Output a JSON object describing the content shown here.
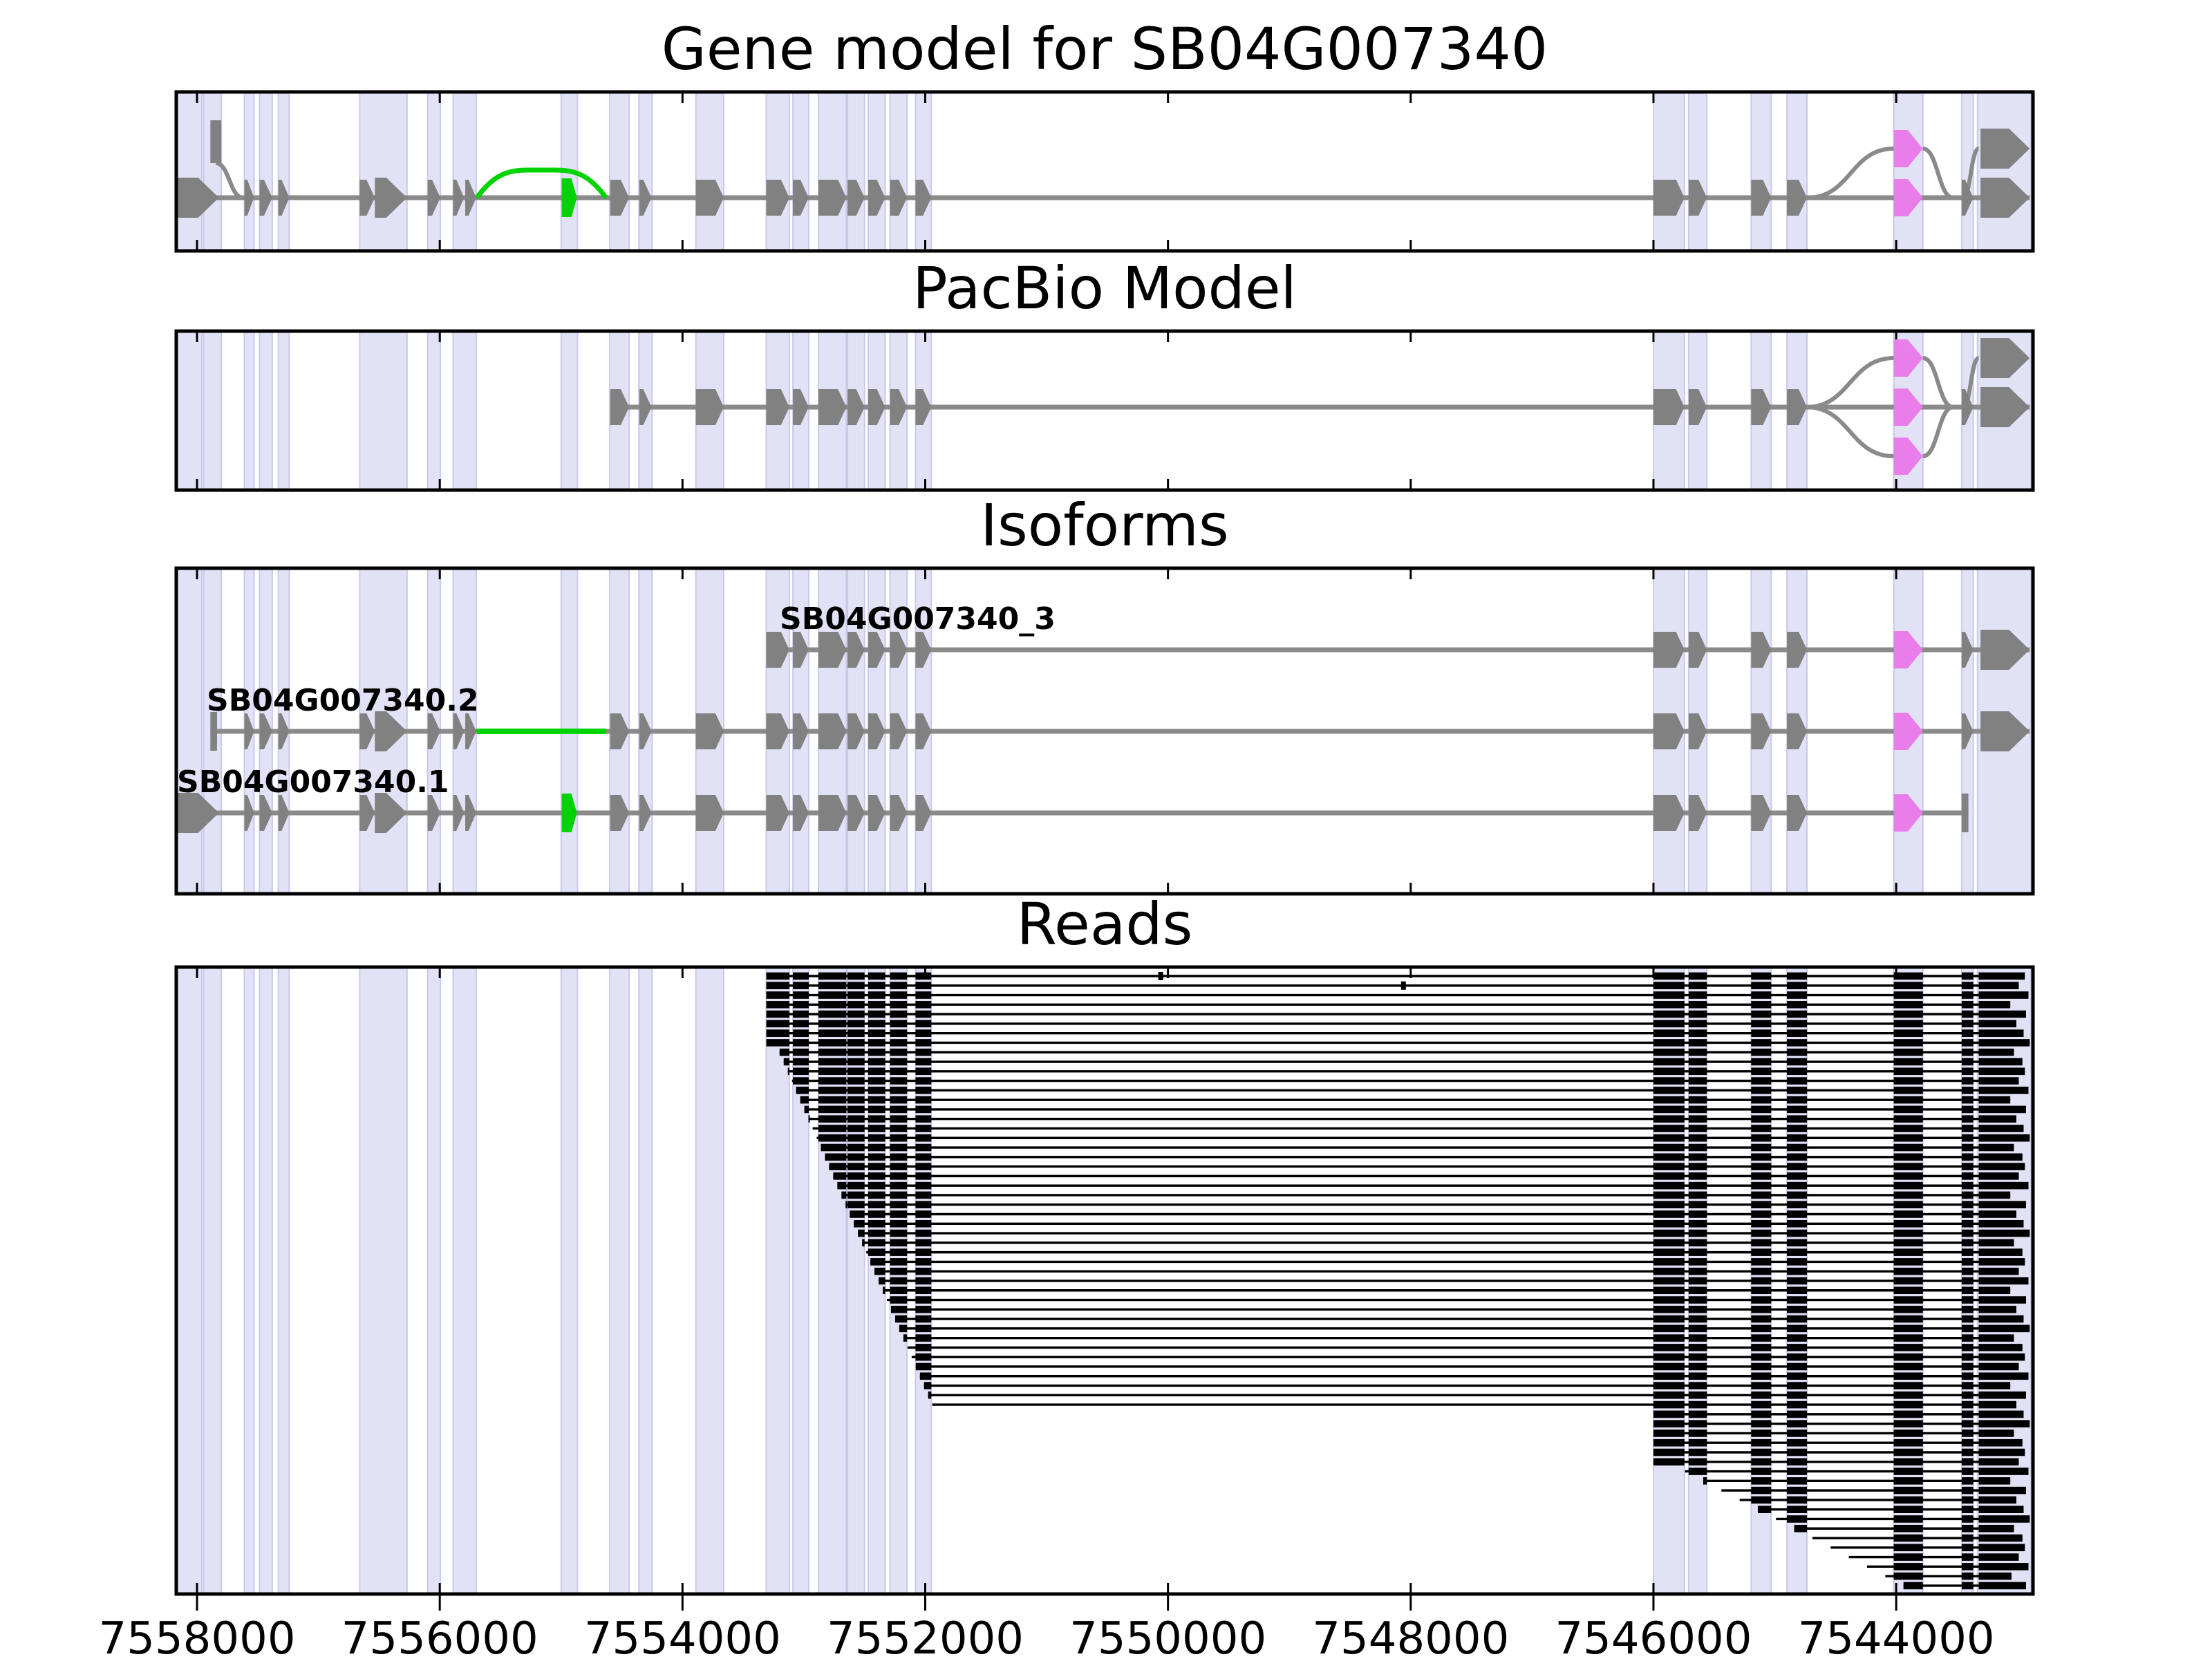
{
  "page": {
    "background": "#ffffff"
  },
  "colors": {
    "exon_gray": "#818181",
    "intron_gray": "#8a8a8a",
    "read_black": "#000000",
    "green": "#00d300",
    "violet": "#e97de9",
    "band_fill": "#e2e2f7",
    "band_edge": "#c9c9ec",
    "frame": "#000000",
    "background": "#ffffff"
  },
  "chart_data": {
    "type": "gene-model-tracks",
    "panel_titles": {
      "gene_model": "Gene model for SB04G007340",
      "pacbio": "PacBio Model",
      "isoforms": "Isoforms",
      "reads": "Reads"
    },
    "genome_axis": {
      "xlim": [
        7558171,
        7542873
      ],
      "ticks": [
        7558000,
        7556000,
        7554000,
        7552000,
        7550000,
        7548000,
        7546000,
        7544000
      ],
      "tick_labels": [
        "7558000",
        "7556000",
        "7554000",
        "7552000",
        "7550000",
        "7548000",
        "7546000",
        "7544000"
      ]
    },
    "highlight_bands": [
      [
        7558171,
        7557960
      ],
      [
        7557945,
        7557800
      ],
      [
        7557610,
        7557530
      ],
      [
        7557485,
        7557380
      ],
      [
        7557330,
        7557240
      ],
      [
        7556660,
        7556270
      ],
      [
        7556100,
        7555995
      ],
      [
        7555890,
        7555700
      ],
      [
        7555000,
        7554865
      ],
      [
        7554600,
        7554440
      ],
      [
        7554360,
        7554250
      ],
      [
        7553890,
        7553660
      ],
      [
        7553310,
        7553120
      ],
      [
        7553090,
        7552960
      ],
      [
        7552880,
        7552650
      ],
      [
        7552640,
        7552500
      ],
      [
        7552470,
        7552330
      ],
      [
        7552290,
        7552150
      ],
      [
        7552080,
        7551950
      ],
      [
        7546000,
        7545745
      ],
      [
        7545710,
        7545560
      ],
      [
        7545195,
        7545030
      ],
      [
        7544900,
        7544735
      ],
      [
        7544020,
        7543780
      ],
      [
        7543460,
        7543365
      ],
      [
        7543330,
        7542890
      ]
    ],
    "exon_defs": {
      "A1": {
        "coords": [
          7558171,
          7557820
        ],
        "style": "big"
      },
      "A1b": {
        "coords": [
          7557890,
          7557800
        ],
        "style": "upbar"
      },
      "SB2": {
        "coords": [
          7557890,
          7557835
        ],
        "style": "bar"
      },
      "A2": {
        "coords": [
          7557610,
          7557530
        ],
        "style": "small"
      },
      "A3": {
        "coords": [
          7557485,
          7557380
        ],
        "style": "small"
      },
      "A4": {
        "coords": [
          7557330,
          7557240
        ],
        "style": "small"
      },
      "A5": {
        "coords": [
          7556660,
          7556535
        ],
        "style": "small"
      },
      "A6": {
        "coords": [
          7556535,
          7556270
        ],
        "style": "big"
      },
      "A7": {
        "coords": [
          7556100,
          7555995
        ],
        "style": "small"
      },
      "A8": {
        "coords": [
          7555890,
          7555800
        ],
        "style": "small"
      },
      "A9": {
        "coords": [
          7555790,
          7555700
        ],
        "style": "small"
      },
      "GB": {
        "coords": [
          7554995,
          7554870
        ],
        "style": "greenbar"
      },
      "B1": {
        "coords": [
          7554595,
          7554440
        ],
        "style": "small"
      },
      "B2": {
        "coords": [
          7554355,
          7554255
        ],
        "style": "small"
      },
      "B3": {
        "coords": [
          7553890,
          7553660
        ],
        "style": "small"
      },
      "B4": {
        "coords": [
          7553310,
          7553120
        ],
        "style": "small"
      },
      "B5": {
        "coords": [
          7553090,
          7552960
        ],
        "style": "small"
      },
      "B6": {
        "coords": [
          7552880,
          7552650
        ],
        "style": "small"
      },
      "B7": {
        "coords": [
          7552640,
          7552500
        ],
        "style": "small"
      },
      "B8": {
        "coords": [
          7552470,
          7552330
        ],
        "style": "small"
      },
      "B9": {
        "coords": [
          7552290,
          7552150
        ],
        "style": "small"
      },
      "B10": {
        "coords": [
          7552080,
          7551950
        ],
        "style": "small"
      },
      "C1": {
        "coords": [
          7546000,
          7545745
        ],
        "style": "small"
      },
      "C2": {
        "coords": [
          7545710,
          7545560
        ],
        "style": "small"
      },
      "C3": {
        "coords": [
          7545195,
          7545030
        ],
        "style": "small"
      },
      "C4": {
        "coords": [
          7544900,
          7544735
        ],
        "style": "small"
      },
      "V1": {
        "coords": [
          7544020,
          7543780
        ],
        "style": "violet"
      },
      "C5": {
        "coords": [
          7543460,
          7543365
        ],
        "style": "small"
      },
      "C6": {
        "coords": [
          7543305,
          7542900
        ],
        "style": "big"
      },
      "EB1": {
        "coords": [
          7543460,
          7543405
        ],
        "style": "bar"
      }
    },
    "tracks": {
      "gene_model": {
        "panel": "gene_model",
        "line": [
          7558171,
          7542900
        ],
        "exons": [
          "A1",
          "A2",
          "A3",
          "A4",
          "A5",
          "A6",
          "A7",
          "A8",
          "A9",
          "GB",
          "B1",
          "B2",
          "B3",
          "B4",
          "B5",
          "B6",
          "B7",
          "B8",
          "B9",
          "B10",
          "C1",
          "C2",
          "C3",
          "C4",
          "V1",
          "C5",
          "C6"
        ],
        "raised": [
          {
            "exon": "A1b",
            "dir": "up"
          },
          {
            "exon": "V1",
            "dir": "up"
          },
          {
            "exon": "C6",
            "dir": "up"
          }
        ],
        "curves": [
          {
            "kind": "s",
            "from_bp": 7557845,
            "from": "upbar_bottom",
            "to_bp": 7557620,
            "to": "line"
          },
          {
            "kind": "arch",
            "from_bp": 7555695,
            "to_bp": 7554630,
            "lift": 40
          },
          {
            "kind": "s",
            "from_bp": 7544730,
            "from": "line",
            "to_bp": 7544020,
            "to": "up"
          },
          {
            "kind": "s",
            "from_bp": 7543780,
            "from": "up",
            "to_bp": 7543530,
            "to": "line"
          },
          {
            "kind": "s",
            "from_bp": 7543450,
            "from": "line",
            "to_bp": 7543320,
            "to": "up"
          }
        ]
      },
      "pacbio": {
        "panel": "pacbio",
        "line": [
          7554595,
          7542900
        ],
        "exons": [
          "B1",
          "B2",
          "B3",
          "B4",
          "B5",
          "B6",
          "B7",
          "B8",
          "B9",
          "B10",
          "C1",
          "C2",
          "C3",
          "C4",
          "V1",
          "C5",
          "C6"
        ],
        "raised": [
          {
            "exon": "V1",
            "dir": "up"
          },
          {
            "exon": "V1",
            "dir": "down"
          },
          {
            "exon": "C6",
            "dir": "up"
          }
        ],
        "curves": [
          {
            "kind": "s",
            "from_bp": 7544740,
            "from": "line",
            "to_bp": 7544020,
            "to": "up"
          },
          {
            "kind": "s",
            "from_bp": 7544740,
            "from": "line",
            "to_bp": 7544020,
            "to": "down"
          },
          {
            "kind": "s",
            "from_bp": 7543780,
            "from": "up",
            "to_bp": 7543530,
            "to": "line"
          },
          {
            "kind": "s",
            "from_bp": 7543780,
            "from": "down",
            "to_bp": 7543530,
            "to": "line"
          },
          {
            "kind": "s",
            "from_bp": 7543450,
            "from": "line",
            "to_bp": 7543320,
            "to": "up"
          }
        ]
      }
    },
    "isoforms": [
      {
        "label": "SB04G007340_3",
        "row": 0,
        "line": [
          7553310,
          7542900
        ],
        "exons": [
          "B4",
          "B5",
          "B6",
          "B7",
          "B8",
          "B9",
          "B10",
          "C1",
          "C2",
          "C3",
          "C4",
          "V1",
          "C5",
          "C6"
        ]
      },
      {
        "label": "SB04G007340.2",
        "row": 1,
        "line": [
          7557890,
          7542900
        ],
        "green_line": [
          7555695,
          7554630
        ],
        "exons": [
          "SB2",
          "A2",
          "A3",
          "A4",
          "A5",
          "A6",
          "A7",
          "A8",
          "A9",
          "B1",
          "B2",
          "B3",
          "B4",
          "B5",
          "B6",
          "B7",
          "B8",
          "B9",
          "B10",
          "C1",
          "C2",
          "C3",
          "C4",
          "V1",
          "C5",
          "C6"
        ]
      },
      {
        "label": "SB04G007340.1",
        "row": 2,
        "line": [
          7558171,
          7543405
        ],
        "exons": [
          "A1",
          "A2",
          "A3",
          "A4",
          "A5",
          "A6",
          "A7",
          "A8",
          "A9",
          "GB",
          "B1",
          "B2",
          "B3",
          "B4",
          "B5",
          "B6",
          "B7",
          "B8",
          "B9",
          "B10",
          "C1",
          "C2",
          "C3",
          "C4",
          "V1",
          "EB1"
        ]
      }
    ],
    "reads": {
      "block_exons": [
        "B4",
        "B5",
        "B6",
        "B7",
        "B8",
        "B9",
        "B10",
        "C1",
        "C2",
        "C3",
        "C4",
        "V1",
        "C5"
      ],
      "terminal_block_start": 7543320,
      "marks": [
        [
          0,
          7550080,
          7550040
        ],
        [
          1,
          7548080,
          7548040
        ]
      ],
      "rows": [
        [
          7553310,
          7542940
        ],
        [
          7553310,
          7542990
        ],
        [
          7553310,
          7542910
        ],
        [
          7553310,
          7543060
        ],
        [
          7553310,
          7542930
        ],
        [
          7553310,
          7543010
        ],
        [
          7553310,
          7542950
        ],
        [
          7553310,
          7542900
        ],
        [
          7553200,
          7543030
        ],
        [
          7553166,
          7542960
        ],
        [
          7553132,
          7542940
        ],
        [
          7553098,
          7542990
        ],
        [
          7553064,
          7542910
        ],
        [
          7553030,
          7543060
        ],
        [
          7552996,
          7542930
        ],
        [
          7552962,
          7543010
        ],
        [
          7552928,
          7542950
        ],
        [
          7552894,
          7542900
        ],
        [
          7552860,
          7543030
        ],
        [
          7552826,
          7542960
        ],
        [
          7552792,
          7542940
        ],
        [
          7552758,
          7542990
        ],
        [
          7552724,
          7542910
        ],
        [
          7552690,
          7543060
        ],
        [
          7552656,
          7542930
        ],
        [
          7552622,
          7543010
        ],
        [
          7552588,
          7542950
        ],
        [
          7552554,
          7542900
        ],
        [
          7552520,
          7543030
        ],
        [
          7552486,
          7542960
        ],
        [
          7552452,
          7542940
        ],
        [
          7552418,
          7542990
        ],
        [
          7552384,
          7542910
        ],
        [
          7552350,
          7543060
        ],
        [
          7552316,
          7542930
        ],
        [
          7552282,
          7543010
        ],
        [
          7552248,
          7542950
        ],
        [
          7552214,
          7542900
        ],
        [
          7552180,
          7543030
        ],
        [
          7552146,
          7542960
        ],
        [
          7552112,
          7542940
        ],
        [
          7552078,
          7542990
        ],
        [
          7552044,
          7542910
        ],
        [
          7552010,
          7543060
        ],
        [
          7551976,
          7542930
        ],
        [
          7551942,
          7543010
        ],
        [
          7546000,
          7542950
        ],
        [
          7546000,
          7542900
        ],
        [
          7546000,
          7543030
        ],
        [
          7546000,
          7542960
        ],
        [
          7546000,
          7542940
        ],
        [
          7546000,
          7542990
        ],
        [
          7545740,
          7542910
        ],
        [
          7545590,
          7543060
        ],
        [
          7545440,
          7542930
        ],
        [
          7545290,
          7543010
        ],
        [
          7545140,
          7542950
        ],
        [
          7544990,
          7542900
        ],
        [
          7544840,
          7543030
        ],
        [
          7544690,
          7542960
        ],
        [
          7544540,
          7542940
        ],
        [
          7544390,
          7542990
        ],
        [
          7544240,
          7542910
        ],
        [
          7544090,
          7543050
        ],
        [
          7543940,
          7542930
        ]
      ]
    }
  }
}
